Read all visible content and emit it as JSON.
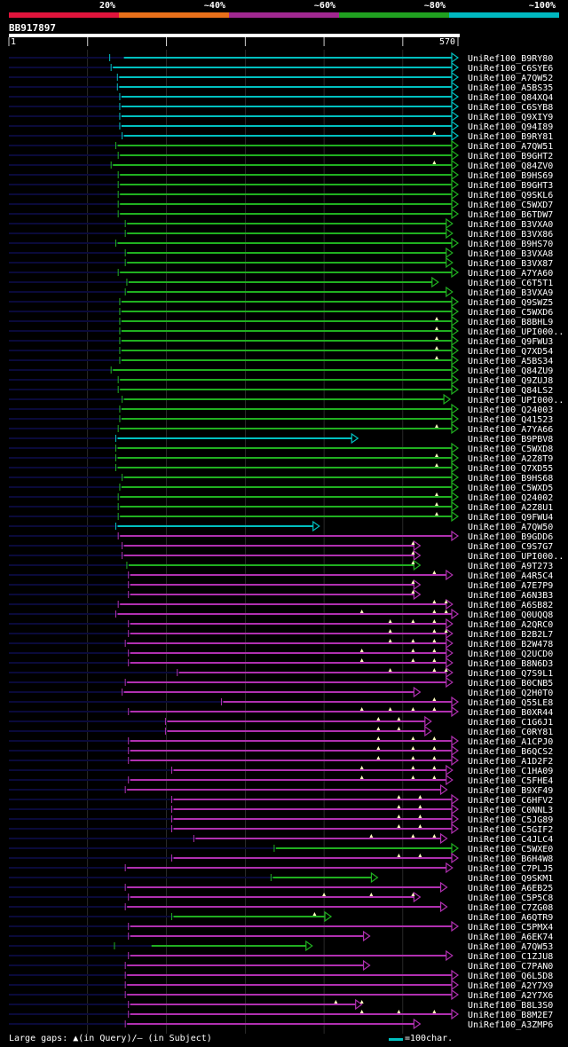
{
  "colors": {
    "cyan": "#00c0c0",
    "green": "#20b020",
    "magenta": "#b030b0",
    "gap": "#0a0a3a",
    "grid": "#444",
    "line": "#fff"
  },
  "legend": {
    "segments": [
      {
        "label": "20%",
        "color": "#e0143c"
      },
      {
        "label": "~40%",
        "color": "#e8701a"
      },
      {
        "label": "~60%",
        "color": "#a02890"
      },
      {
        "label": "~80%",
        "color": "#20a020"
      },
      {
        "label": "~100%",
        "color": "#00b8c0"
      }
    ]
  },
  "query": {
    "id": "BB917897",
    "start": "1",
    "end": "570"
  },
  "footer": {
    "text": "Large gaps: ▲(in Query)/— (in Subject)",
    "scale": "=100char."
  },
  "chart_data": {
    "type": "alignment",
    "query_length": 570,
    "hits": [
      {
        "name": "UniRef100_B9RY80",
        "start": 146,
        "end": 570,
        "cls": "c",
        "nstart": 128,
        "gaps": []
      },
      {
        "name": "UniRef100_C6SYE6",
        "start": 132,
        "end": 570,
        "cls": "c",
        "nstart": 0,
        "gaps": []
      },
      {
        "name": "UniRef100_A7QW52",
        "start": 140,
        "end": 570,
        "cls": "c",
        "nstart": 0,
        "gaps": []
      },
      {
        "name": "UniRef100_A5BS35",
        "start": 140,
        "end": 570,
        "cls": "c",
        "nstart": 0,
        "gaps": []
      },
      {
        "name": "UniRef100_Q84XQ4",
        "start": 143,
        "end": 570,
        "cls": "c",
        "nstart": 0,
        "gaps": []
      },
      {
        "name": "UniRef100_C6SYB8",
        "start": 143,
        "end": 570,
        "cls": "c",
        "nstart": 0,
        "gaps": []
      },
      {
        "name": "UniRef100_Q9XIY9",
        "start": 143,
        "end": 570,
        "cls": "c",
        "nstart": 0,
        "gaps": []
      },
      {
        "name": "UniRef100_Q94I89",
        "start": 143,
        "end": 570,
        "cls": "c",
        "nstart": 0,
        "gaps": []
      },
      {
        "name": "UniRef100_B9RY81",
        "start": 146,
        "end": 570,
        "cls": "c",
        "nstart": 0,
        "gaps": [
          540
        ]
      },
      {
        "name": "UniRef100_A7QW51",
        "start": 138,
        "end": 570,
        "cls": "g",
        "nstart": 0,
        "gaps": []
      },
      {
        "name": "UniRef100_B9GHT2",
        "start": 141,
        "end": 570,
        "cls": "g",
        "nstart": 0,
        "gaps": []
      },
      {
        "name": "UniRef100_Q84ZV0",
        "start": 132,
        "end": 570,
        "cls": "g",
        "nstart": 0,
        "gaps": [
          540
        ]
      },
      {
        "name": "UniRef100_B9HS69",
        "start": 141,
        "end": 570,
        "cls": "g",
        "nstart": 0,
        "gaps": []
      },
      {
        "name": "UniRef100_B9GHT3",
        "start": 141,
        "end": 570,
        "cls": "g",
        "nstart": 0,
        "gaps": []
      },
      {
        "name": "UniRef100_Q9SKL6",
        "start": 141,
        "end": 570,
        "cls": "g",
        "nstart": 0,
        "gaps": []
      },
      {
        "name": "UniRef100_C5WXD7",
        "start": 141,
        "end": 570,
        "cls": "g",
        "nstart": 0,
        "gaps": []
      },
      {
        "name": "UniRef100_B6TDW7",
        "start": 141,
        "end": 570,
        "cls": "g",
        "nstart": 0,
        "gaps": []
      },
      {
        "name": "UniRef100_B3VXA0",
        "start": 150,
        "end": 563,
        "cls": "g",
        "nstart": 0,
        "gaps": []
      },
      {
        "name": "UniRef100_B3VX86",
        "start": 150,
        "end": 563,
        "cls": "g",
        "nstart": 0,
        "gaps": []
      },
      {
        "name": "UniRef100_B9HS70",
        "start": 138,
        "end": 570,
        "cls": "g",
        "nstart": 0,
        "gaps": []
      },
      {
        "name": "UniRef100_B3VXA8",
        "start": 150,
        "end": 563,
        "cls": "g",
        "nstart": 0,
        "gaps": []
      },
      {
        "name": "UniRef100_B3VX87",
        "start": 150,
        "end": 563,
        "cls": "g",
        "nstart": 0,
        "gaps": []
      },
      {
        "name": "UniRef100_A7YA60",
        "start": 141,
        "end": 570,
        "cls": "g",
        "nstart": 0,
        "gaps": []
      },
      {
        "name": "UniRef100_C6T5T1",
        "start": 152,
        "end": 545,
        "cls": "g",
        "nstart": 0,
        "gaps": []
      },
      {
        "name": "UniRef100_B3VXA9",
        "start": 150,
        "end": 563,
        "cls": "g",
        "nstart": 0,
        "gaps": []
      },
      {
        "name": "UniRef100_Q9SWZ5",
        "start": 143,
        "end": 570,
        "cls": "g",
        "nstart": 0,
        "gaps": []
      },
      {
        "name": "UniRef100_C5WXD6",
        "start": 143,
        "end": 570,
        "cls": "g",
        "nstart": 0,
        "gaps": []
      },
      {
        "name": "UniRef100_B8BHL9",
        "start": 143,
        "end": 570,
        "cls": "g",
        "nstart": 0,
        "gaps": [
          543
        ]
      },
      {
        "name": "UniRef100_UPI000..",
        "start": 143,
        "end": 570,
        "cls": "g",
        "nstart": 0,
        "gaps": [
          543
        ]
      },
      {
        "name": "UniRef100_Q9FWU3",
        "start": 143,
        "end": 570,
        "cls": "g",
        "nstart": 0,
        "gaps": [
          543
        ]
      },
      {
        "name": "UniRef100_Q7XD54",
        "start": 143,
        "end": 570,
        "cls": "g",
        "nstart": 0,
        "gaps": [
          543
        ]
      },
      {
        "name": "UniRef100_A5BS34",
        "start": 143,
        "end": 570,
        "cls": "g",
        "nstart": 0,
        "gaps": [
          543
        ]
      },
      {
        "name": "UniRef100_Q84ZU9",
        "start": 132,
        "end": 570,
        "cls": "g",
        "nstart": 0,
        "gaps": []
      },
      {
        "name": "UniRef100_Q9ZUJ8",
        "start": 141,
        "end": 570,
        "cls": "g",
        "nstart": 0,
        "gaps": []
      },
      {
        "name": "UniRef100_Q84LS2",
        "start": 141,
        "end": 570,
        "cls": "g",
        "nstart": 0,
        "gaps": []
      },
      {
        "name": "UniRef100_UPI000..",
        "start": 146,
        "end": 560,
        "cls": "g",
        "nstart": 0,
        "gaps": []
      },
      {
        "name": "UniRef100_Q24003",
        "start": 143,
        "end": 570,
        "cls": "g",
        "nstart": 0,
        "gaps": []
      },
      {
        "name": "UniRef100_Q41523",
        "start": 143,
        "end": 570,
        "cls": "g",
        "nstart": 0,
        "gaps": []
      },
      {
        "name": "UniRef100_A7YA66",
        "start": 141,
        "end": 570,
        "cls": "g",
        "nstart": 0,
        "gaps": [
          543
        ]
      },
      {
        "name": "UniRef100_B9PBV8",
        "start": 138,
        "end": 443,
        "cls": "c",
        "nstart": 0,
        "gaps": []
      },
      {
        "name": "UniRef100_C5WXD8",
        "start": 138,
        "end": 570,
        "cls": "g",
        "nstart": 0,
        "gaps": []
      },
      {
        "name": "UniRef100_A2Z8T9",
        "start": 138,
        "end": 570,
        "cls": "g",
        "nstart": 0,
        "gaps": [
          543
        ]
      },
      {
        "name": "UniRef100_Q7XD55",
        "start": 138,
        "end": 570,
        "cls": "g",
        "nstart": 0,
        "gaps": [
          543
        ]
      },
      {
        "name": "UniRef100_B9HS68",
        "start": 146,
        "end": 570,
        "cls": "g",
        "nstart": 0,
        "gaps": []
      },
      {
        "name": "UniRef100_C5WXD5",
        "start": 143,
        "end": 570,
        "cls": "g",
        "nstart": 0,
        "gaps": []
      },
      {
        "name": "UniRef100_Q24002",
        "start": 141,
        "end": 570,
        "cls": "g",
        "nstart": 0,
        "gaps": [
          543
        ]
      },
      {
        "name": "UniRef100_A2Z8U1",
        "start": 141,
        "end": 570,
        "cls": "g",
        "nstart": 0,
        "gaps": [
          543
        ]
      },
      {
        "name": "UniRef100_Q9FWU4",
        "start": 141,
        "end": 570,
        "cls": "g",
        "nstart": 0,
        "gaps": [
          543
        ]
      },
      {
        "name": "UniRef100_A7QW50",
        "start": 138,
        "end": 394,
        "cls": "c",
        "nstart": 0,
        "gaps": []
      },
      {
        "name": "UniRef100_B9GDD6",
        "start": 141,
        "end": 570,
        "cls": "m",
        "nstart": 0,
        "gaps": []
      },
      {
        "name": "UniRef100_C9S7G7",
        "start": 146,
        "end": 522,
        "cls": "m",
        "nstart": 0,
        "gaps": [
          513
        ]
      },
      {
        "name": "UniRef100_UPI000..",
        "start": 146,
        "end": 522,
        "cls": "m",
        "nstart": 0,
        "gaps": [
          513
        ]
      },
      {
        "name": "UniRef100_A9T273",
        "start": 152,
        "end": 522,
        "cls": "g",
        "nstart": 0,
        "gaps": [
          513
        ]
      },
      {
        "name": "UniRef100_A4R5C4",
        "start": 154,
        "end": 563,
        "cls": "m",
        "nstart": 0,
        "gaps": [
          540
        ]
      },
      {
        "name": "UniRef100_A7E7P9",
        "start": 154,
        "end": 522,
        "cls": "m",
        "nstart": 0,
        "gaps": [
          513
        ]
      },
      {
        "name": "UniRef100_A6N3B3",
        "start": 154,
        "end": 522,
        "cls": "m",
        "nstart": 0,
        "gaps": [
          513
        ]
      },
      {
        "name": "UniRef100_A6SB82",
        "start": 141,
        "end": 563,
        "cls": "m",
        "nstart": 0,
        "gaps": [
          540,
          555
        ]
      },
      {
        "name": "UniRef100_Q0UQQ8",
        "start": 138,
        "end": 570,
        "cls": "m",
        "nstart": 0,
        "gaps": [
          448,
          540,
          555
        ]
      },
      {
        "name": "UniRef100_A2QRC0",
        "start": 154,
        "end": 563,
        "cls": "m",
        "nstart": 0,
        "gaps": [
          484,
          513,
          540
        ]
      },
      {
        "name": "UniRef100_B2B2L7",
        "start": 154,
        "end": 563,
        "cls": "m",
        "nstart": 0,
        "gaps": [
          484,
          540,
          555
        ]
      },
      {
        "name": "UniRef100_B2W478",
        "start": 150,
        "end": 563,
        "cls": "m",
        "nstart": 0,
        "gaps": [
          484,
          513,
          540
        ]
      },
      {
        "name": "UniRef100_Q2UCD0",
        "start": 154,
        "end": 563,
        "cls": "m",
        "nstart": 0,
        "gaps": [
          448,
          513,
          540
        ]
      },
      {
        "name": "UniRef100_B8N6D3",
        "start": 154,
        "end": 563,
        "cls": "m",
        "nstart": 0,
        "gaps": [
          448,
          513,
          540
        ]
      },
      {
        "name": "UniRef100_Q7S9L1",
        "start": 216,
        "end": 563,
        "cls": "m",
        "nstart": 0,
        "gaps": [
          484,
          540,
          555
        ]
      },
      {
        "name": "UniRef100_B0CNB5",
        "start": 150,
        "end": 563,
        "cls": "m",
        "nstart": 0,
        "gaps": []
      },
      {
        "name": "UniRef100_Q2H0T0",
        "start": 146,
        "end": 522,
        "cls": "m",
        "nstart": 0,
        "gaps": []
      },
      {
        "name": "UniRef100_Q55LE8",
        "start": 272,
        "end": 570,
        "cls": "m",
        "nstart": 0,
        "gaps": [
          540
        ]
      },
      {
        "name": "UniRef100_B0XR44",
        "start": 154,
        "end": 570,
        "cls": "m",
        "nstart": 0,
        "gaps": [
          448,
          484,
          513,
          540
        ]
      },
      {
        "name": "UniRef100_C1G6J1",
        "start": 201,
        "end": 536,
        "cls": "m",
        "nstart": 0,
        "gaps": [
          469,
          495
        ]
      },
      {
        "name": "UniRef100_C0RY81",
        "start": 201,
        "end": 536,
        "cls": "m",
        "nstart": 0,
        "gaps": [
          469,
          495
        ]
      },
      {
        "name": "UniRef100_A1CPJ0",
        "start": 154,
        "end": 570,
        "cls": "m",
        "nstart": 0,
        "gaps": [
          469,
          513,
          540
        ]
      },
      {
        "name": "UniRef100_B6QCS2",
        "start": 154,
        "end": 570,
        "cls": "m",
        "nstart": 0,
        "gaps": [
          469,
          513,
          540
        ]
      },
      {
        "name": "UniRef100_A1D2F2",
        "start": 154,
        "end": 570,
        "cls": "m",
        "nstart": 0,
        "gaps": [
          469,
          513,
          540
        ]
      },
      {
        "name": "UniRef100_C1HA09",
        "start": 209,
        "end": 563,
        "cls": "m",
        "nstart": 0,
        "gaps": [
          448,
          513,
          540
        ]
      },
      {
        "name": "UniRef100_C5FHE4",
        "start": 154,
        "end": 563,
        "cls": "m",
        "nstart": 0,
        "gaps": [
          448,
          513,
          540
        ]
      },
      {
        "name": "UniRef100_B9XF49",
        "start": 150,
        "end": 556,
        "cls": "m",
        "nstart": 0,
        "gaps": []
      },
      {
        "name": "UniRef100_C6HFV2",
        "start": 209,
        "end": 570,
        "cls": "m",
        "nstart": 0,
        "gaps": [
          495,
          522
        ]
      },
      {
        "name": "UniRef100_C0NNL3",
        "start": 209,
        "end": 570,
        "cls": "m",
        "nstart": 0,
        "gaps": [
          495,
          522
        ]
      },
      {
        "name": "UniRef100_C5JG89",
        "start": 209,
        "end": 570,
        "cls": "m",
        "nstart": 0,
        "gaps": [
          495,
          522
        ]
      },
      {
        "name": "UniRef100_C5GIF2",
        "start": 209,
        "end": 570,
        "cls": "m",
        "nstart": 0,
        "gaps": [
          495,
          522
        ]
      },
      {
        "name": "UniRef100_C4JLC4",
        "start": 237,
        "end": 556,
        "cls": "m",
        "nstart": 0,
        "gaps": [
          460,
          513,
          540
        ]
      },
      {
        "name": "UniRef100_C5WXE0",
        "start": 339,
        "end": 570,
        "cls": "g",
        "nstart": 0,
        "gaps": []
      },
      {
        "name": "UniRef100_B6H4W8",
        "start": 209,
        "end": 570,
        "cls": "m",
        "nstart": 0,
        "gaps": [
          495,
          522
        ]
      },
      {
        "name": "UniRef100_C7PLJ5",
        "start": 150,
        "end": 563,
        "cls": "m",
        "nstart": 0,
        "gaps": []
      },
      {
        "name": "UniRef100_Q9SKM1",
        "start": 335,
        "end": 468,
        "cls": "g",
        "nstart": 0,
        "gaps": []
      },
      {
        "name": "UniRef100_A6EB25",
        "start": 150,
        "end": 556,
        "cls": "m",
        "nstart": 0,
        "gaps": []
      },
      {
        "name": "UniRef100_C5P5C8",
        "start": 154,
        "end": 522,
        "cls": "m",
        "nstart": 0,
        "gaps": [
          400,
          460,
          513
        ]
      },
      {
        "name": "UniRef100_C7ZG08",
        "start": 150,
        "end": 556,
        "cls": "m",
        "nstart": 0,
        "gaps": []
      },
      {
        "name": "UniRef100_A6QTR9",
        "start": 209,
        "end": 409,
        "cls": "g",
        "nstart": 0,
        "gaps": [
          388
        ]
      },
      {
        "name": "UniRef100_C5PMX4",
        "start": 154,
        "end": 570,
        "cls": "m",
        "nstart": 0,
        "gaps": []
      },
      {
        "name": "UniRef100_A6EK74",
        "start": 154,
        "end": 458,
        "cls": "m",
        "nstart": 0,
        "gaps": []
      },
      {
        "name": "UniRef100_A7QW53",
        "start": 181,
        "end": 385,
        "cls": "g",
        "nstart": 134,
        "gaps": []
      },
      {
        "name": "UniRef100_C1ZJU8",
        "start": 154,
        "end": 563,
        "cls": "m",
        "nstart": 0,
        "gaps": []
      },
      {
        "name": "UniRef100_C7PAN0",
        "start": 150,
        "end": 458,
        "cls": "m",
        "nstart": 0,
        "gaps": []
      },
      {
        "name": "UniRef100_Q6L5D8",
        "start": 150,
        "end": 570,
        "cls": "m",
        "nstart": 0,
        "gaps": []
      },
      {
        "name": "UniRef100_A2Y7X9",
        "start": 150,
        "end": 570,
        "cls": "m",
        "nstart": 0,
        "gaps": []
      },
      {
        "name": "UniRef100_A2Y7X6",
        "start": 150,
        "end": 570,
        "cls": "m",
        "nstart": 0,
        "gaps": []
      },
      {
        "name": "UniRef100_B8L3S0",
        "start": 154,
        "end": 448,
        "cls": "m",
        "nstart": 0,
        "gaps": [
          415,
          448
        ]
      },
      {
        "name": "UniRef100_B8M2E7",
        "start": 154,
        "end": 570,
        "cls": "m",
        "nstart": 0,
        "gaps": [
          448,
          495,
          540
        ]
      },
      {
        "name": "UniRef100_A3ZMP6",
        "start": 150,
        "end": 522,
        "cls": "m",
        "nstart": 0,
        "gaps": []
      }
    ]
  }
}
